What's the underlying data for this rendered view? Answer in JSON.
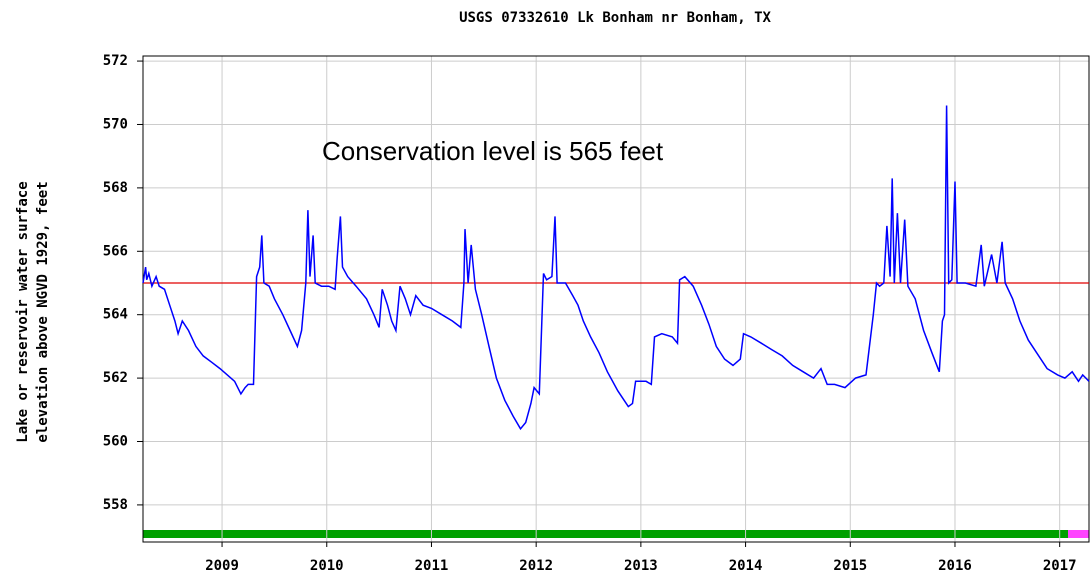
{
  "chart_data": {
    "type": "line",
    "title": "USGS 07332610 Lk Bonham nr Bonham, TX",
    "ylabel": [
      "Lake or reservoir water surface",
      "elevation above NGVD 1929, feet"
    ],
    "annotation": "Conservation level is 565 feet",
    "reference_line": {
      "value": 565,
      "color": "#e00000"
    },
    "xlim": [
      2008.245,
      2017.28
    ],
    "xticks": [
      2009,
      2010,
      2011,
      2012,
      2013,
      2014,
      2015,
      2016,
      2017
    ],
    "ylim": [
      556.83,
      572.16
    ],
    "yticks": [
      558,
      560,
      562,
      564,
      566,
      568,
      570,
      572
    ],
    "grid": true,
    "series": [
      {
        "color": "#0000ff",
        "x": [
          2008.245,
          2008.27,
          2008.28,
          2008.3,
          2008.33,
          2008.37,
          2008.4,
          2008.45,
          2008.5,
          2008.55,
          2008.58,
          2008.62,
          2008.68,
          2008.75,
          2008.82,
          2008.9,
          2008.98,
          2009.05,
          2009.12,
          2009.18,
          2009.22,
          2009.25,
          2009.3,
          2009.33,
          2009.36,
          2009.38,
          2009.4,
          2009.45,
          2009.5,
          2009.58,
          2009.65,
          2009.72,
          2009.76,
          2009.8,
          2009.82,
          2009.84,
          2009.87,
          2009.89,
          2009.95,
          2010.02,
          2010.08,
          2010.1,
          2010.13,
          2010.15,
          2010.2,
          2010.28,
          2010.38,
          2010.45,
          2010.5,
          2010.53,
          2010.58,
          2010.62,
          2010.66,
          2010.7,
          2010.75,
          2010.8,
          2010.85,
          2010.92,
          2011.0,
          2011.1,
          2011.2,
          2011.28,
          2011.31,
          2011.32,
          2011.35,
          2011.38,
          2011.42,
          2011.48,
          2011.55,
          2011.62,
          2011.7,
          2011.78,
          2011.85,
          2011.9,
          2011.95,
          2011.98,
          2012.03,
          2012.07,
          2012.1,
          2012.15,
          2012.18,
          2012.2,
          2012.28,
          2012.35,
          2012.4,
          2012.45,
          2012.52,
          2012.6,
          2012.68,
          2012.78,
          2012.88,
          2012.92,
          2012.95,
          2013.05,
          2013.1,
          2013.13,
          2013.2,
          2013.3,
          2013.35,
          2013.37,
          2013.42,
          2013.5,
          2013.58,
          2013.65,
          2013.72,
          2013.8,
          2013.88,
          2013.95,
          2013.98,
          2014.05,
          2014.15,
          2014.25,
          2014.35,
          2014.45,
          2014.55,
          2014.65,
          2014.72,
          2014.78,
          2014.85,
          2014.95,
          2015.05,
          2015.15,
          2015.22,
          2015.25,
          2015.28,
          2015.32,
          2015.35,
          2015.38,
          2015.4,
          2015.42,
          2015.45,
          2015.48,
          2015.52,
          2015.55,
          2015.62,
          2015.7,
          2015.78,
          2015.85,
          2015.88,
          2015.9,
          2015.92,
          2015.94,
          2015.97,
          2016.0,
          2016.02,
          2016.1,
          2016.2,
          2016.25,
          2016.28,
          2016.35,
          2016.4,
          2016.45,
          2016.48,
          2016.55,
          2016.62,
          2016.7,
          2016.78,
          2016.88,
          2016.98,
          2017.05,
          2017.12,
          2017.18,
          2017.22,
          2017.28
        ],
        "values": [
          565.0,
          565.5,
          565.1,
          565.3,
          564.9,
          565.2,
          564.9,
          564.8,
          564.3,
          563.8,
          563.4,
          563.8,
          563.5,
          563.0,
          562.7,
          562.5,
          562.3,
          562.1,
          561.9,
          561.5,
          561.7,
          561.8,
          561.8,
          565.2,
          565.5,
          566.5,
          565.0,
          564.9,
          564.5,
          564.0,
          563.5,
          563.0,
          563.5,
          565.0,
          567.3,
          565.2,
          566.5,
          565.0,
          564.9,
          564.9,
          564.8,
          565.8,
          567.1,
          565.5,
          565.2,
          564.9,
          564.5,
          564.0,
          563.6,
          564.8,
          564.3,
          563.8,
          563.5,
          564.9,
          564.5,
          564.0,
          564.6,
          564.3,
          564.2,
          564.0,
          563.8,
          563.6,
          565.0,
          566.7,
          565.0,
          566.2,
          564.8,
          564.0,
          563.0,
          562.0,
          561.3,
          560.8,
          560.4,
          560.6,
          561.2,
          561.7,
          561.5,
          565.3,
          565.1,
          565.2,
          567.1,
          565.0,
          565.0,
          564.6,
          564.3,
          563.8,
          563.3,
          562.8,
          562.2,
          561.6,
          561.1,
          561.2,
          561.9,
          561.9,
          561.8,
          563.3,
          563.4,
          563.3,
          563.1,
          565.1,
          565.2,
          564.9,
          564.3,
          563.7,
          563.0,
          562.6,
          562.4,
          562.6,
          563.4,
          563.3,
          563.1,
          562.9,
          562.7,
          562.4,
          562.2,
          562.0,
          562.3,
          561.8,
          561.8,
          561.7,
          562.0,
          562.1,
          564.0,
          565.0,
          564.9,
          565.0,
          566.8,
          565.2,
          568.3,
          565.0,
          567.2,
          565.0,
          567.0,
          564.9,
          564.5,
          563.5,
          562.8,
          562.2,
          563.8,
          564.0,
          570.6,
          565.0,
          565.1,
          568.2,
          565.0,
          565.0,
          564.9,
          566.2,
          564.9,
          565.9,
          565.0,
          566.3,
          565.0,
          564.5,
          563.8,
          563.2,
          562.8,
          562.3,
          562.1,
          562.0,
          562.2,
          561.9,
          562.1,
          561.9
        ]
      }
    ]
  }
}
